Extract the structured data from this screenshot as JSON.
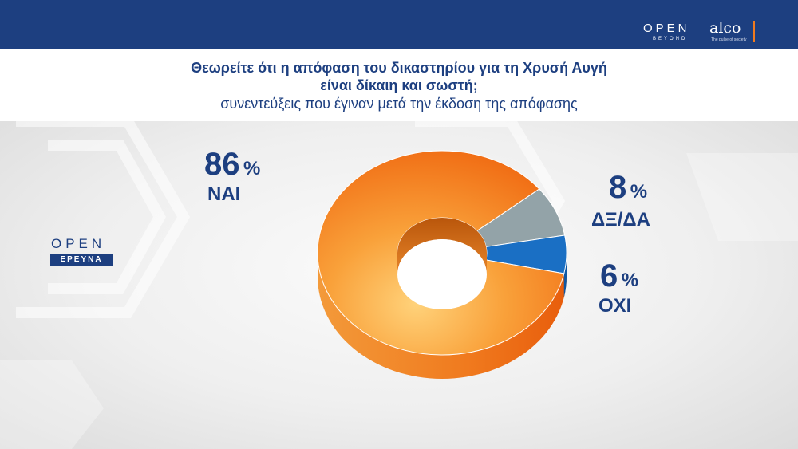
{
  "header": {
    "brand_left": "OPEN",
    "brand_left_sub": "BEYOND",
    "brand_right": "alco",
    "brand_right_tagline": "The pulse of society"
  },
  "title": {
    "line1": "Θεωρείτε ότι η απόφαση του δικαστηρίου για τη Χρυσή Αυγή",
    "line2": "είναι δίκαιη και σωστή;",
    "subtitle": "συνεντεύξεις που έγιναν μετά την έκδοση της απόφασης"
  },
  "side_logo": {
    "open": "OPEN",
    "label": "ΕΡΕΥΝΑ"
  },
  "chart_data": {
    "type": "pie",
    "style": "3d-donut",
    "title": "Θεωρείτε ότι η απόφαση του δικαστηρίου για τη Χρυσή Αυγή είναι δίκαιη και σωστή;",
    "subtitle": "συνεντεύξεις που έγιναν μετά την έκδοση της απόφασης",
    "categories": [
      "ΝΑΙ",
      "ΔΞ/ΔΑ",
      "ΟΧΙ"
    ],
    "values": [
      86,
      8,
      6
    ],
    "unit": "%",
    "colors": [
      "#f4841f",
      "#93a3a8",
      "#1a6fc4"
    ]
  }
}
